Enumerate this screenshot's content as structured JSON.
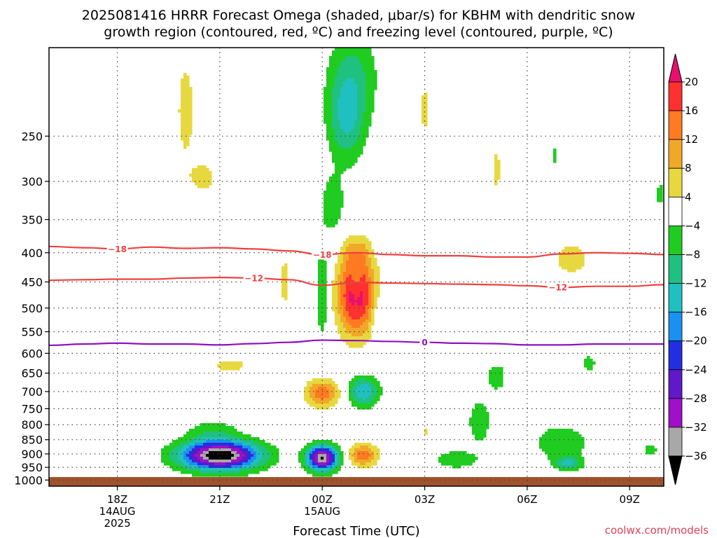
{
  "title": {
    "line1": "2025081416 HRRR Forecast Omega (shaded, μbar/s) for KBHM with dendritic snow",
    "line2": "growth region (contoured, red, ºC) and freezing level (contoured, purple, ºC)"
  },
  "credit": "coolwx.com/models",
  "chart_data": {
    "type": "heatmap",
    "xlabel": "Forecast Time (UTC)",
    "x_ticks": [
      {
        "hour": 18,
        "lines": [
          "18Z",
          "14AUG",
          "2025"
        ]
      },
      {
        "hour": 21,
        "lines": [
          "21Z"
        ]
      },
      {
        "hour": 24,
        "lines": [
          "00Z",
          "15AUG"
        ]
      },
      {
        "hour": 27,
        "lines": [
          "03Z"
        ]
      },
      {
        "hour": 30,
        "lines": [
          "06Z"
        ]
      },
      {
        "hour": 33,
        "lines": [
          "09Z"
        ]
      }
    ],
    "x_range_hours": [
      16,
      34
    ],
    "y_axis": {
      "scale": "log-pressure",
      "reversed": true,
      "range_hpa": [
        1025,
        175
      ]
    },
    "y_ticks": [
      250,
      300,
      350,
      400,
      450,
      500,
      550,
      600,
      650,
      700,
      750,
      800,
      850,
      900,
      950,
      1000
    ],
    "grid": true,
    "colorbar": {
      "labels": [
        20,
        16,
        12,
        8,
        4,
        -4,
        -8,
        -12,
        -16,
        -20,
        -24,
        -28,
        -32,
        -36
      ],
      "bands": [
        {
          "from": 16,
          "to": 20,
          "color": "#ff3030"
        },
        {
          "from": 12,
          "to": 16,
          "color": "#ff7a20"
        },
        {
          "from": 8,
          "to": 12,
          "color": "#f0a828"
        },
        {
          "from": 4,
          "to": 8,
          "color": "#e8d840"
        },
        {
          "from": -4,
          "to": 4,
          "color": "#ffffff"
        },
        {
          "from": -8,
          "to": -4,
          "color": "#20cc20"
        },
        {
          "from": -12,
          "to": -8,
          "color": "#20c080"
        },
        {
          "from": -16,
          "to": -12,
          "color": "#20c0c0"
        },
        {
          "from": -20,
          "to": -16,
          "color": "#1a90f0"
        },
        {
          "from": -24,
          "to": -20,
          "color": "#2030e0"
        },
        {
          "from": -28,
          "to": -24,
          "color": "#6018c8"
        },
        {
          "from": -32,
          "to": -28,
          "color": "#a010c8"
        },
        {
          "from": -36,
          "to": -32,
          "color": "#a8a8a8"
        }
      ],
      "over_color": "#e8106e",
      "under_color": "#000000"
    },
    "terrain": {
      "surface_hpa": 988,
      "color": "#a0522d"
    },
    "omega_features": [
      {
        "label": "strong upward motion core",
        "hour": 25.0,
        "hpa": 475,
        "peak": 22
      },
      {
        "label": "upward motion",
        "hour": 24.0,
        "hpa": 705,
        "peak": 14
      },
      {
        "label": "upward motion",
        "hour": 25.2,
        "hpa": 905,
        "peak": 14
      },
      {
        "label": "downward motion",
        "hour": 21.0,
        "hpa": 905,
        "peak": -33
      },
      {
        "label": "downward motion",
        "hour": 24.0,
        "hpa": 915,
        "peak": -34
      },
      {
        "label": "downward motion",
        "hour": 25.2,
        "hpa": 700,
        "peak": -16
      },
      {
        "label": "upper downward motion",
        "hour": 25.2,
        "hpa": 235,
        "peak": -10
      }
    ],
    "contours": [
      {
        "value": -18,
        "label": "−18",
        "color": "#f04040",
        "label_hours": [
          18.0,
          24.0
        ],
        "points": [
          [
            16,
            390
          ],
          [
            17,
            392
          ],
          [
            18,
            394
          ],
          [
            19,
            391
          ],
          [
            20,
            393
          ],
          [
            21,
            392
          ],
          [
            22,
            394
          ],
          [
            23,
            397
          ],
          [
            24,
            403
          ],
          [
            25,
            400
          ],
          [
            26,
            403
          ],
          [
            27,
            405
          ],
          [
            28,
            405
          ],
          [
            29,
            407
          ],
          [
            30,
            407
          ],
          [
            31,
            402
          ],
          [
            32,
            400
          ],
          [
            33,
            401
          ],
          [
            34,
            403
          ]
        ]
      },
      {
        "value": -12,
        "label": "−12",
        "color": "#f04040",
        "label_hours": [
          22.0,
          30.9
        ],
        "points": [
          [
            16,
            447
          ],
          [
            17,
            446
          ],
          [
            18,
            445
          ],
          [
            19,
            445
          ],
          [
            20,
            443
          ],
          [
            21,
            442
          ],
          [
            22,
            443
          ],
          [
            23,
            446
          ],
          [
            24,
            456
          ],
          [
            25,
            451
          ],
          [
            26,
            452
          ],
          [
            27,
            453
          ],
          [
            28,
            454
          ],
          [
            29,
            455
          ],
          [
            30,
            457
          ],
          [
            31,
            460
          ],
          [
            32,
            458
          ],
          [
            33,
            458
          ],
          [
            34,
            455
          ]
        ]
      },
      {
        "value": 0,
        "label": "0",
        "color": "#9010c0",
        "label_hours": [
          27.0
        ],
        "points": [
          [
            16,
            581
          ],
          [
            17,
            578
          ],
          [
            18,
            576
          ],
          [
            19,
            578
          ],
          [
            20,
            578
          ],
          [
            21,
            580
          ],
          [
            22,
            577
          ],
          [
            23,
            574
          ],
          [
            24,
            569
          ],
          [
            25,
            570
          ],
          [
            26,
            572
          ],
          [
            27,
            574
          ],
          [
            28,
            576
          ],
          [
            29,
            577
          ],
          [
            30,
            580
          ],
          [
            31,
            580
          ],
          [
            32,
            578
          ],
          [
            33,
            578
          ],
          [
            34,
            578
          ]
        ]
      }
    ]
  }
}
